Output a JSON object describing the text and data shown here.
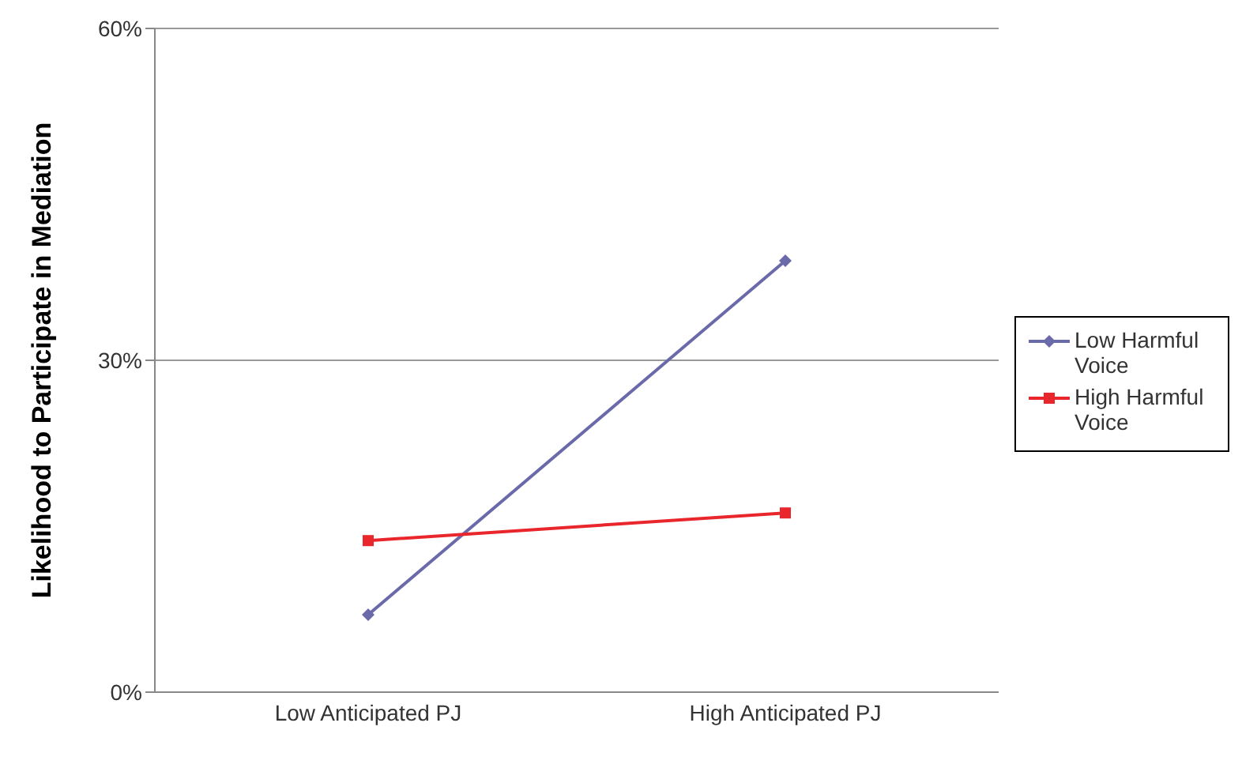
{
  "chart_data": {
    "type": "line",
    "ylabel": "Likelihood to Participate in Mediation",
    "categories": [
      "Low Anticipated PJ",
      "High Anticipated PJ"
    ],
    "series": [
      {
        "name": "Low Harmful Voice",
        "color": "#6a6aaa",
        "values": [
          7,
          39
        ],
        "marker": "diamond"
      },
      {
        "name": "High Harmful Voice",
        "color": "#e8262b",
        "values": [
          13.7,
          16.2
        ],
        "marker": "square"
      }
    ],
    "ylim": [
      0,
      60
    ],
    "yticks": [
      {
        "value": 0,
        "label": "0%"
      },
      {
        "value": 30,
        "label": "30%"
      },
      {
        "value": 60,
        "label": "60%"
      }
    ],
    "grid": "y",
    "legend": "right"
  }
}
